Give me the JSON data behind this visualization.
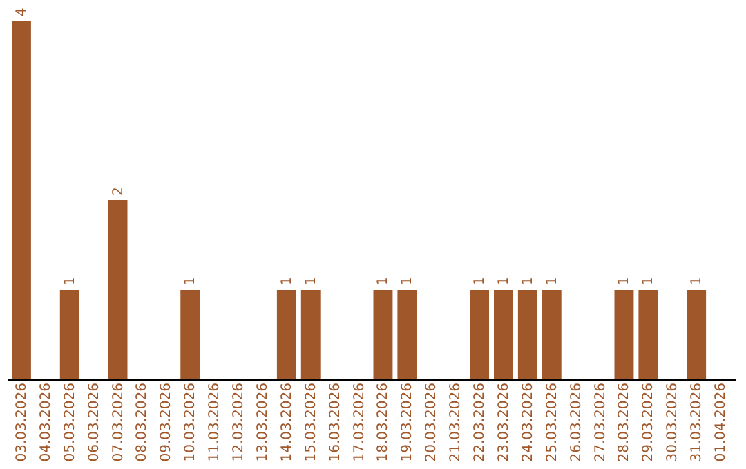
{
  "chart_data": {
    "type": "bar",
    "categories": [
      "03.03.2026",
      "04.03.2026",
      "05.03.2026",
      "06.03.2026",
      "07.03.2026",
      "08.03.2026",
      "09.03.2026",
      "10.03.2026",
      "11.03.2026",
      "12.03.2026",
      "13.03.2026",
      "14.03.2026",
      "15.03.2026",
      "16.03.2026",
      "17.03.2026",
      "18.03.2026",
      "19.03.2026",
      "20.03.2026",
      "21.03.2026",
      "22.03.2026",
      "23.03.2026",
      "24.03.2026",
      "25.03.2026",
      "26.03.2026",
      "27.03.2026",
      "28.03.2026",
      "29.03.2026",
      "30.03.2026",
      "31.03.2026",
      "01.04.2026"
    ],
    "values": [
      4,
      0,
      1,
      0,
      2,
      0,
      0,
      1,
      0,
      0,
      0,
      1,
      1,
      0,
      0,
      1,
      1,
      0,
      0,
      1,
      1,
      1,
      1,
      0,
      0,
      1,
      1,
      0,
      1,
      0
    ],
    "value_labels": [
      "4",
      null,
      "1",
      null,
      "2",
      null,
      null,
      "1",
      null,
      null,
      null,
      "1",
      "1",
      null,
      null,
      "1",
      "1",
      null,
      null,
      "1",
      "1",
      "1",
      "1",
      null,
      null,
      "1",
      "1",
      null,
      "1",
      null
    ],
    "color": "#a0572a",
    "grid": false
  }
}
